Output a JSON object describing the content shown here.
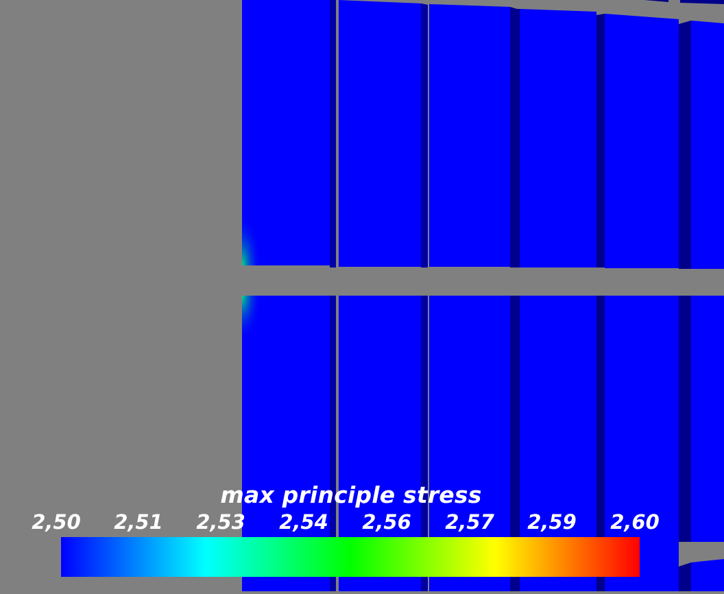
{
  "scalar_bar": {
    "title": "max principle stress",
    "tick_labels": [
      "2,50",
      "2,51",
      "2,53",
      "2,54",
      "2,56",
      "2,57",
      "2,59",
      "2,60"
    ],
    "range": [
      2.5,
      2.6
    ],
    "colormap": [
      "#0000ff",
      "#00ffff",
      "#00ff00",
      "#ffff00",
      "#ff0000"
    ]
  },
  "colors": {
    "background": "#808080",
    "block_face": "#0000ff",
    "block_side": "#00008b",
    "hotspot": "#00e080"
  }
}
